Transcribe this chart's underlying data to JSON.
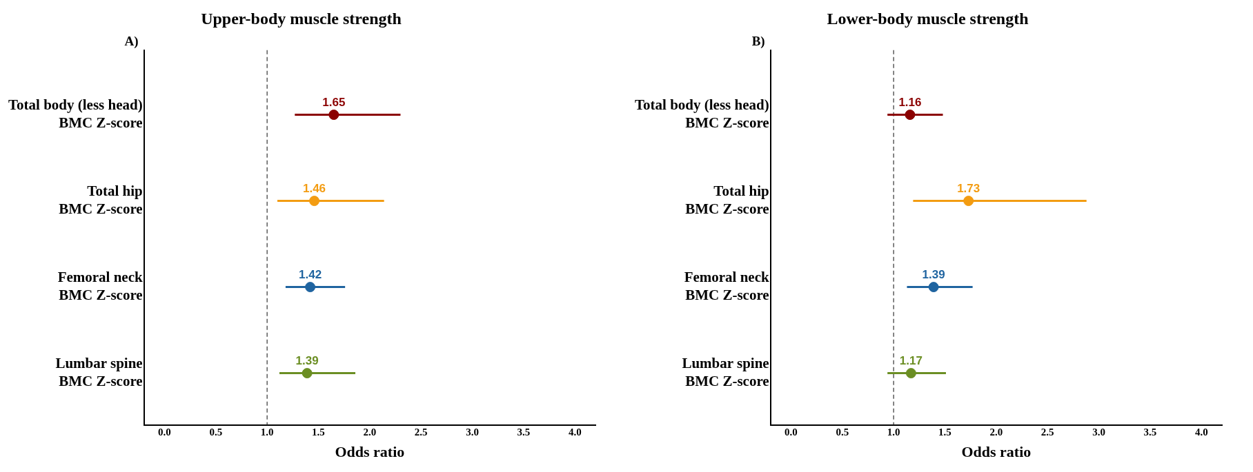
{
  "chart_data": [
    {
      "type": "scatter",
      "orientation": "horizontal",
      "title": "Upper-body muscle strength",
      "xlabel": "Odds ratio",
      "annotations": [
        "A)"
      ],
      "categories": [
        "Total body (less head)\nBMC Z-score",
        "Total hip\nBMC Z-score",
        "Femoral neck\nBMC Z-score",
        "Lumbar spine\nBMC Z-score"
      ],
      "values": [
        1.65,
        1.46,
        1.42,
        1.39
      ],
      "errors": [
        [
          1.27,
          2.3
        ],
        [
          1.1,
          2.14
        ],
        [
          1.18,
          1.76
        ],
        [
          1.12,
          1.86
        ]
      ],
      "colors": [
        "#8b0000",
        "#f39c12",
        "#1f64a0",
        "#6b8e23"
      ],
      "data_labels": true,
      "marker": "circle",
      "xlim": [
        -0.2,
        4.2
      ],
      "xticks": [
        {
          "value": 0,
          "label": "0.0"
        },
        {
          "value": 0.5,
          "label": "0.5"
        },
        {
          "value": 1,
          "label": "1.0"
        },
        {
          "value": 1.5,
          "label": "1.5"
        },
        {
          "value": 2,
          "label": "2.0"
        },
        {
          "value": 2.5,
          "label": "2.5"
        },
        {
          "value": 3,
          "label": "3.0"
        },
        {
          "value": 3.5,
          "label": "3.5"
        },
        {
          "value": 4,
          "label": "4.0"
        }
      ],
      "ref_lines": [
        {
          "axis": "x",
          "value": 1,
          "line_style": "dashed",
          "color": "#333333"
        }
      ]
    },
    {
      "type": "scatter",
      "orientation": "horizontal",
      "title": "Lower-body muscle strength",
      "xlabel": "Odds ratio",
      "annotations": [
        "B)"
      ],
      "categories": [
        "Total body (less head)\nBMC Z-score",
        "Total hip\nBMC Z-score",
        "Femoral neck\nBMC Z-score",
        "Lumbar spine\nBMC Z-score"
      ],
      "values": [
        1.16,
        1.73,
        1.39,
        1.17
      ],
      "errors": [
        [
          0.94,
          1.48
        ],
        [
          1.19,
          2.88
        ],
        [
          1.13,
          1.77
        ],
        [
          0.94,
          1.51
        ]
      ],
      "colors": [
        "#8b0000",
        "#f39c12",
        "#1f64a0",
        "#6b8e23"
      ],
      "data_labels": true,
      "marker": "circle",
      "xlim": [
        -0.2,
        4.2
      ],
      "xticks": [
        {
          "value": 0,
          "label": "0.0"
        },
        {
          "value": 0.5,
          "label": "0.5"
        },
        {
          "value": 1,
          "label": "1.0"
        },
        {
          "value": 1.5,
          "label": "1.5"
        },
        {
          "value": 2,
          "label": "2.0"
        },
        {
          "value": 2.5,
          "label": "2.5"
        },
        {
          "value": 3,
          "label": "3.0"
        },
        {
          "value": 3.5,
          "label": "3.5"
        },
        {
          "value": 4,
          "label": "4.0"
        }
      ],
      "ref_lines": [
        {
          "axis": "x",
          "value": 1,
          "line_style": "dashed",
          "color": "#333333"
        }
      ]
    }
  ]
}
